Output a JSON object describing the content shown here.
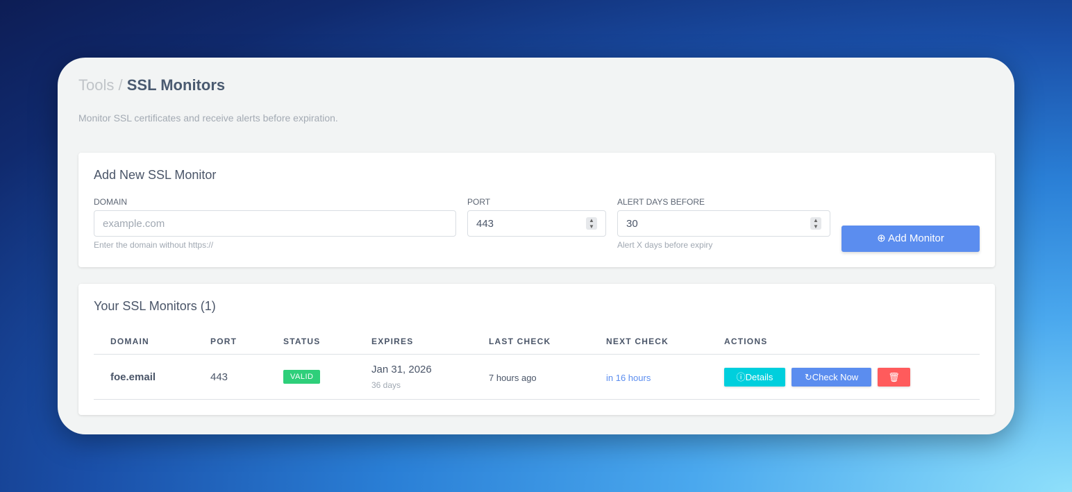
{
  "breadcrumb": {
    "parent": "Tools",
    "separator": "/",
    "current": "SSL Monitors"
  },
  "subtitle": "Monitor SSL certificates and receive alerts before expiration.",
  "add_form": {
    "title": "Add New SSL Monitor",
    "domain": {
      "label": "DOMAIN",
      "placeholder": "example.com",
      "help": "Enter the domain without https://"
    },
    "port": {
      "label": "PORT",
      "value": "443"
    },
    "alert_days": {
      "label": "ALERT DAYS BEFORE",
      "value": "30",
      "help": "Alert X days before expiry"
    },
    "submit": "Add Monitor",
    "submit_icon": "plus-circle-icon"
  },
  "monitors": {
    "title": "Your SSL Monitors (1)",
    "columns": [
      "DOMAIN",
      "PORT",
      "STATUS",
      "EXPIRES",
      "LAST CHECK",
      "NEXT CHECK",
      "ACTIONS"
    ],
    "rows": [
      {
        "domain": "foe.email",
        "port": "443",
        "status": "VALID",
        "expires": "Jan 31, 2026",
        "expires_in": "36 days",
        "last_check": "7 hours ago",
        "next_check": "in 16 hours"
      }
    ],
    "actions": {
      "details": "Details",
      "check_now": "Check Now",
      "delete_icon": "trash-icon"
    }
  },
  "colors": {
    "valid": "#2ecf7a",
    "details": "#00cfdd",
    "check": "#5b8def",
    "delete": "#ff5b5c"
  }
}
